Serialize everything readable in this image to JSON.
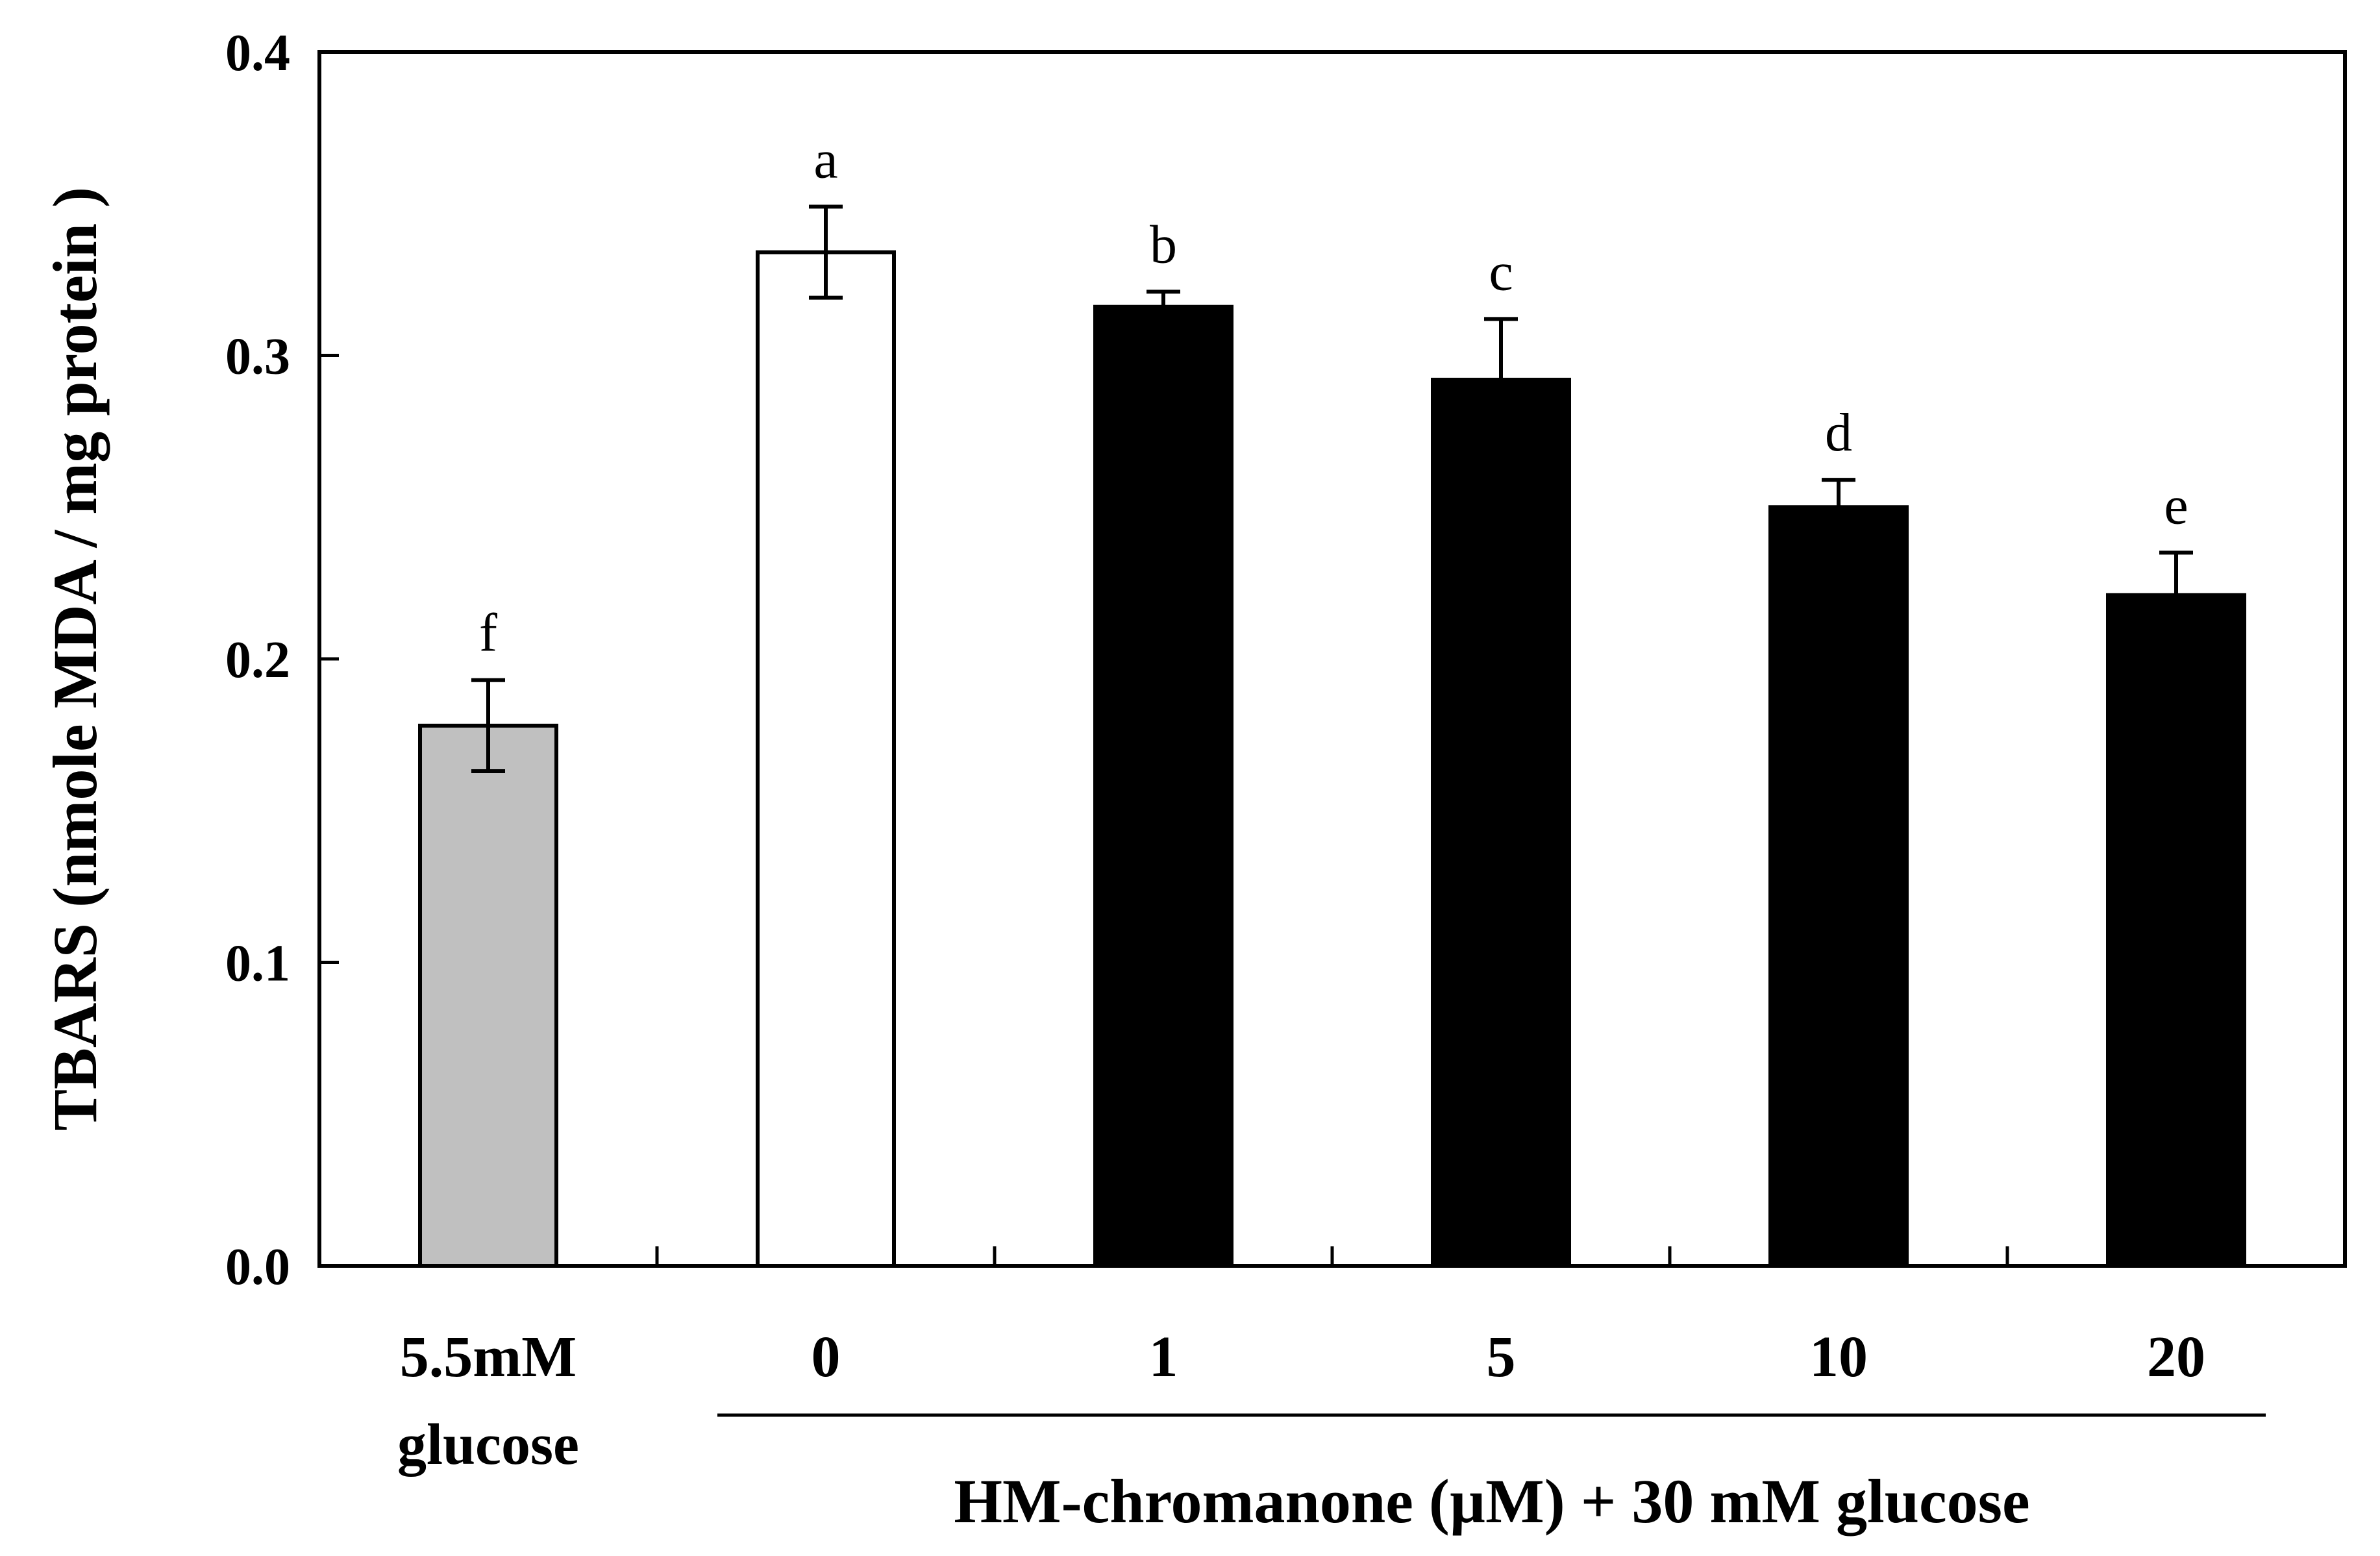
{
  "chart_data": {
    "type": "bar",
    "title": "",
    "ylabel": "TBARS (nmole MDA / mg protein )",
    "xlabel": "HM-chromanone (µM) + 30 mM glucose",
    "ylim": [
      0.0,
      0.4
    ],
    "yticks": [
      "0.0",
      "0.1",
      "0.2",
      "0.3",
      "0.4"
    ],
    "ytick_values": [
      0.0,
      0.1,
      0.2,
      0.3,
      0.4
    ],
    "categories": [
      {
        "line1": "5.5mM",
        "line2": "glucose"
      },
      {
        "line1": "0",
        "line2": ""
      },
      {
        "line1": "1",
        "line2": ""
      },
      {
        "line1": "5",
        "line2": ""
      },
      {
        "line1": "10",
        "line2": ""
      },
      {
        "line1": "20",
        "line2": ""
      }
    ],
    "values": [
      0.178,
      0.334,
      0.316,
      0.292,
      0.25,
      0.221
    ],
    "errors": [
      0.015,
      0.015,
      0.005,
      0.02,
      0.009,
      0.014
    ],
    "significance_letters": [
      "f",
      "a",
      "b",
      "c",
      "d",
      "e"
    ],
    "bar_colors": [
      "#c0c0c0",
      "#ffffff",
      "#000000",
      "#000000",
      "#000000",
      "#000000"
    ],
    "grid": false,
    "legend": "none"
  }
}
